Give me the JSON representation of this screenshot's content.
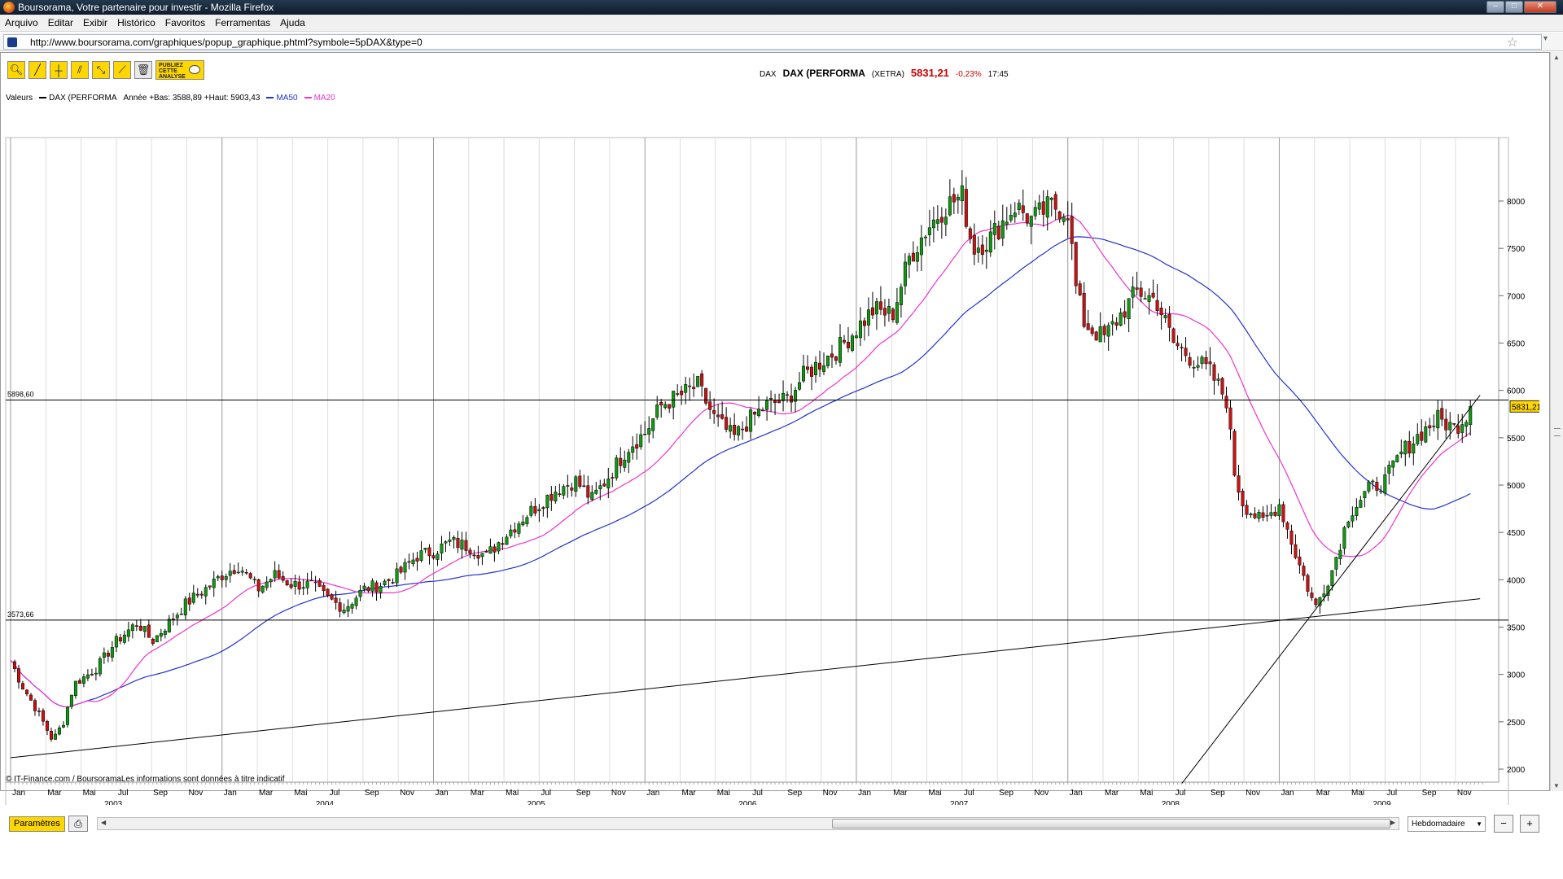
{
  "window": {
    "title": "Boursorama, Votre partenaire pour investir - Mozilla Firefox",
    "url": "http://www.boursorama.com/graphiques/popup_graphique.phtml?symbole=5pDAX&type=0"
  },
  "menu": [
    "Arquivo",
    "Editar",
    "Exibir",
    "Histórico",
    "Favoritos",
    "Ferramentas",
    "Ajuda"
  ],
  "toolbar": {
    "publiez_label": "PUBLIEZ CETTE ANALYSE"
  },
  "quote": {
    "symbol": "DAX",
    "name": "DAX (PERFORMA",
    "exchange": "(XETRA)",
    "last": "5831,21",
    "change": "-0,23%",
    "time": "17:45"
  },
  "legend": {
    "valeurs_label": "Valeurs",
    "series_name": "DAX (PERFORMA",
    "range_text": "Année +Bas: 3588,89 +Haut: 5903,43",
    "ma50_label": "MA50",
    "ma20_label": "MA20"
  },
  "colors": {
    "up_candle": "#119911",
    "down_candle": "#cc1111",
    "ma50": "#2233cc",
    "ma20": "#ee33cc",
    "accent": "#ffd700",
    "last_price_tag": "#ffd700"
  },
  "chart_data": {
    "type": "candlestick",
    "title": "",
    "x_range": [
      "2003-01",
      "2009-11"
    ],
    "ylim": [
      2000,
      8000
    ],
    "y_ticks": [
      2000,
      2500,
      3000,
      3500,
      4000,
      4500,
      5000,
      5500,
      6000,
      6500,
      7000,
      7500,
      8000
    ],
    "month_ticks": [
      "Jan",
      "Mar",
      "Mai",
      "Jul",
      "Sep",
      "Nov",
      "Jan",
      "Mar",
      "Mai",
      "Jul",
      "Sep",
      "Nov",
      "Jan",
      "Mar",
      "Mai",
      "Jul",
      "Sep",
      "Nov",
      "Jan",
      "Mar",
      "Mai",
      "Jul",
      "Sep",
      "Nov",
      "Jan",
      "Mar",
      "Mai",
      "Jul",
      "Sep",
      "Nov",
      "Jan",
      "Mar",
      "Mai",
      "Jul",
      "Sep",
      "Nov",
      "Jan",
      "Mar",
      "Mai",
      "Jul",
      "Sep",
      "Nov"
    ],
    "year_labels": [
      "2003",
      "2004",
      "2005",
      "2006",
      "2007",
      "2008",
      "2009"
    ],
    "horizontal_lines": [
      {
        "label": "5898,60",
        "value": 5898.6
      },
      {
        "label": "3573,66",
        "value": 3573.66
      }
    ],
    "last_price_label": "5831,21",
    "last_price": 5831.21,
    "trendlines": [
      {
        "from": [
          2003.0,
          2120
        ],
        "to": [
          2009.95,
          3800
        ]
      },
      {
        "from": [
          2008.54,
          1850
        ],
        "to": [
          2009.95,
          5950
        ]
      }
    ],
    "price_anchors": [
      [
        2003.0,
        3150
      ],
      [
        2003.05,
        2900
      ],
      [
        2003.13,
        2600
      ],
      [
        2003.2,
        2300
      ],
      [
        2003.25,
        2500
      ],
      [
        2003.3,
        2900
      ],
      [
        2003.4,
        3050
      ],
      [
        2003.5,
        3350
      ],
      [
        2003.6,
        3550
      ],
      [
        2003.67,
        3350
      ],
      [
        2003.75,
        3550
      ],
      [
        2003.83,
        3750
      ],
      [
        2003.95,
        3950
      ],
      [
        2004.0,
        4050
      ],
      [
        2004.08,
        4150
      ],
      [
        2004.17,
        3900
      ],
      [
        2004.25,
        4050
      ],
      [
        2004.33,
        3950
      ],
      [
        2004.42,
        3950
      ],
      [
        2004.5,
        3800
      ],
      [
        2004.58,
        3700
      ],
      [
        2004.67,
        3900
      ],
      [
        2004.75,
        3950
      ],
      [
        2004.83,
        4050
      ],
      [
        2004.92,
        4250
      ],
      [
        2005.0,
        4300
      ],
      [
        2005.08,
        4400
      ],
      [
        2005.17,
        4350
      ],
      [
        2005.25,
        4250
      ],
      [
        2005.33,
        4450
      ],
      [
        2005.42,
        4650
      ],
      [
        2005.5,
        4800
      ],
      [
        2005.58,
        4950
      ],
      [
        2005.67,
        5050
      ],
      [
        2005.75,
        4850
      ],
      [
        2005.83,
        5100
      ],
      [
        2005.92,
        5400
      ],
      [
        2006.0,
        5550
      ],
      [
        2006.08,
        5850
      ],
      [
        2006.17,
        5950
      ],
      [
        2006.25,
        6050
      ],
      [
        2006.33,
        5700
      ],
      [
        2006.42,
        5500
      ],
      [
        2006.5,
        5700
      ],
      [
        2006.58,
        5850
      ],
      [
        2006.67,
        5900
      ],
      [
        2006.75,
        6150
      ],
      [
        2006.83,
        6300
      ],
      [
        2006.92,
        6450
      ],
      [
        2007.0,
        6650
      ],
      [
        2007.08,
        6850
      ],
      [
        2007.17,
        6800
      ],
      [
        2007.25,
        7400
      ],
      [
        2007.33,
        7700
      ],
      [
        2007.42,
        7950
      ],
      [
        2007.5,
        8050
      ],
      [
        2007.55,
        7500
      ],
      [
        2007.63,
        7600
      ],
      [
        2007.75,
        7950
      ],
      [
        2007.83,
        7800
      ],
      [
        2007.92,
        7950
      ],
      [
        2008.0,
        7900
      ],
      [
        2008.04,
        7050
      ],
      [
        2008.08,
        6700
      ],
      [
        2008.17,
        6550
      ],
      [
        2008.25,
        6800
      ],
      [
        2008.33,
        7050
      ],
      [
        2008.42,
        6950
      ],
      [
        2008.5,
        6500
      ],
      [
        2008.58,
        6350
      ],
      [
        2008.67,
        6200
      ],
      [
        2008.75,
        5900
      ],
      [
        2008.79,
        5100
      ],
      [
        2008.83,
        4800
      ],
      [
        2008.92,
        4600
      ],
      [
        2009.0,
        4800
      ],
      [
        2009.08,
        4250
      ],
      [
        2009.17,
        3700
      ],
      [
        2009.25,
        4100
      ],
      [
        2009.33,
        4700
      ],
      [
        2009.42,
        4950
      ],
      [
        2009.5,
        5050
      ],
      [
        2009.58,
        5350
      ],
      [
        2009.67,
        5550
      ],
      [
        2009.75,
        5700
      ],
      [
        2009.83,
        5600
      ],
      [
        2009.92,
        5831
      ]
    ]
  },
  "footer": {
    "source_text": "© IT-Finance.com / BoursoramaLes informations sont données à titre indicatif",
    "params_button": "Paramètres",
    "period_select": "Hebdomadaire"
  }
}
